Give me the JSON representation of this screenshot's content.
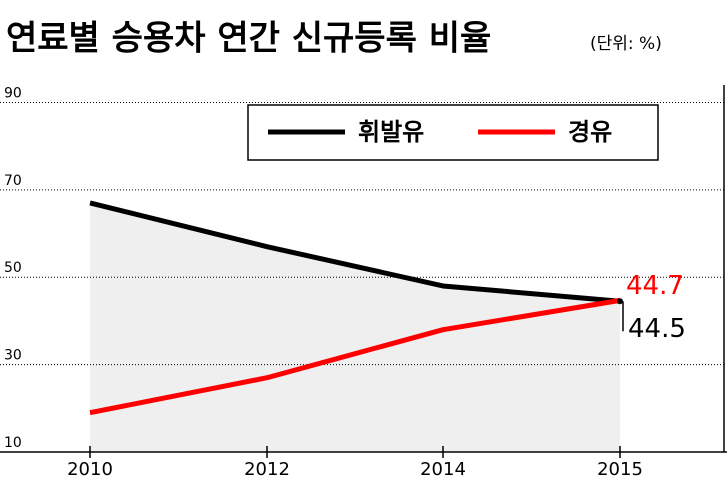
{
  "chart_data": {
    "type": "line",
    "title": "연료별 승용차 연간 신규등록 비율",
    "subtitle": "(단위: %)",
    "categories": [
      "2010",
      "2012",
      "2014",
      "2015"
    ],
    "series": [
      {
        "name": "휘발유",
        "color": "#000000",
        "values": [
          67,
          57,
          48,
          44.5
        ]
      },
      {
        "name": "경유",
        "color": "#ff0000",
        "values": [
          19,
          27,
          38,
          44.7
        ]
      }
    ],
    "ylim": [
      10,
      94
    ],
    "yticks": [
      10,
      30,
      50,
      70,
      90
    ],
    "grid": true,
    "legend": "top",
    "area_fill": "#efefef"
  }
}
